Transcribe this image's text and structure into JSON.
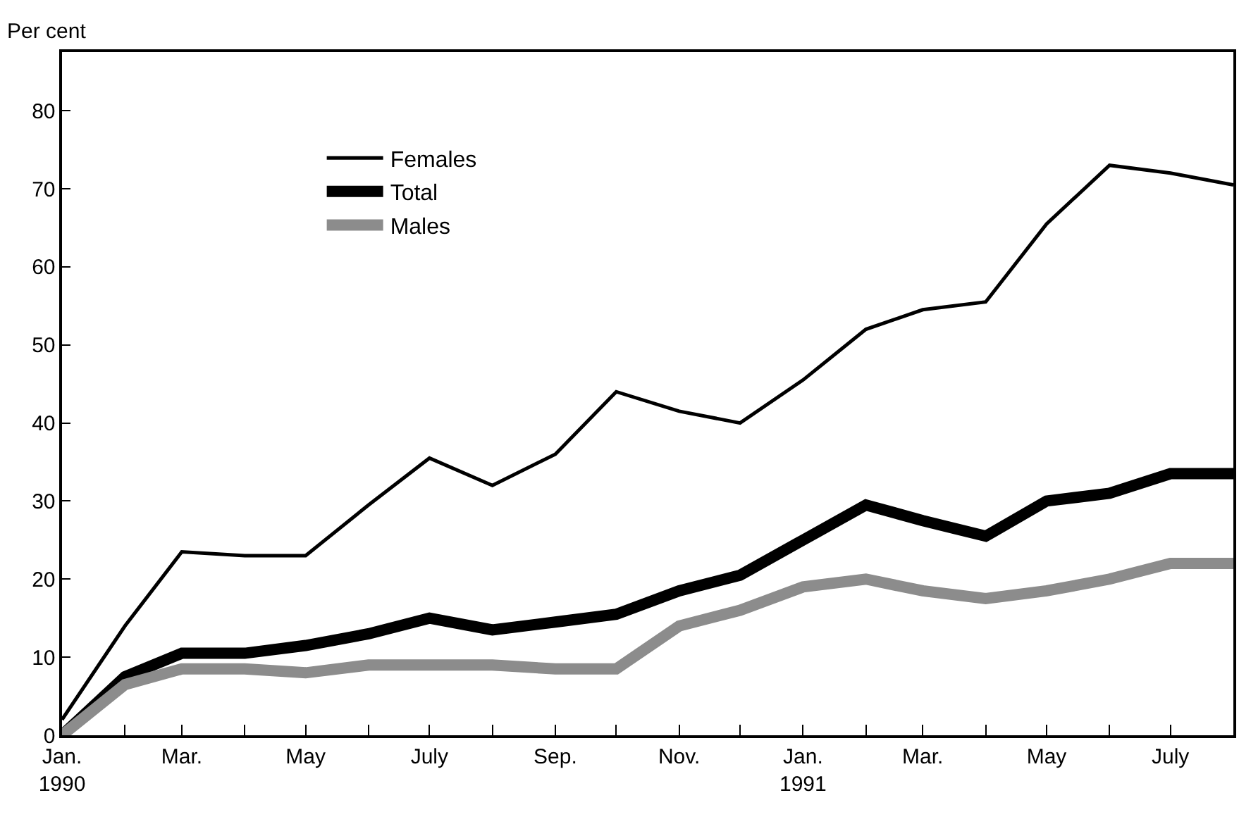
{
  "chart_data": {
    "type": "line",
    "ylabel": "Per cent",
    "x": [
      "1990-01",
      "1990-02",
      "1990-03",
      "1990-04",
      "1990-05",
      "1990-06",
      "1990-07",
      "1990-08",
      "1990-09",
      "1990-10",
      "1990-11",
      "1990-12",
      "1991-01",
      "1991-02",
      "1991-03",
      "1991-04",
      "1991-05",
      "1991-06",
      "1991-07",
      "1991-08"
    ],
    "series": [
      {
        "name": "Females",
        "color": "#000000",
        "values": [
          2,
          14,
          23.5,
          23,
          23,
          29.5,
          35.5,
          32,
          36,
          44,
          41.5,
          40,
          45.5,
          52,
          54.5,
          55.5,
          65.5,
          73,
          72,
          70.5
        ]
      },
      {
        "name": "Total",
        "color": "#000000",
        "values": [
          0,
          7.5,
          10.5,
          10.5,
          11.5,
          13,
          15,
          13.5,
          14.5,
          15.5,
          18.5,
          20.5,
          25,
          29.5,
          27.5,
          25.5,
          30,
          31,
          33.5,
          33.5
        ]
      },
      {
        "name": "Males",
        "color": "#8c8c8c",
        "values": [
          0,
          6.5,
          8.5,
          8.5,
          8,
          9,
          9,
          9,
          8.5,
          8.5,
          14,
          16,
          19,
          20,
          18.5,
          17.5,
          18.5,
          20,
          22,
          22
        ]
      }
    ],
    "xlim": [
      "1990-01",
      "1991-08"
    ],
    "ylim": [
      0,
      87.5
    ],
    "yticks": [
      0,
      10,
      20,
      30,
      40,
      50,
      60,
      70,
      80
    ],
    "xticks": [
      {
        "value": "1990-01",
        "label": "Jan.\n1990"
      },
      {
        "value": "1990-02",
        "label": null
      },
      {
        "value": "1990-03",
        "label": "Mar."
      },
      {
        "value": "1990-04",
        "label": null
      },
      {
        "value": "1990-05",
        "label": "May"
      },
      {
        "value": "1990-06",
        "label": null
      },
      {
        "value": "1990-07",
        "label": "July"
      },
      {
        "value": "1990-08",
        "label": null
      },
      {
        "value": "1990-09",
        "label": "Sep."
      },
      {
        "value": "1990-10",
        "label": null
      },
      {
        "value": "1990-11",
        "label": "Nov."
      },
      {
        "value": "1990-12",
        "label": null
      },
      {
        "value": "1991-01",
        "label": "Jan.\n1991"
      },
      {
        "value": "1991-02",
        "label": null
      },
      {
        "value": "1991-03",
        "label": "Mar."
      },
      {
        "value": "1991-04",
        "label": null
      },
      {
        "value": "1991-05",
        "label": "May"
      },
      {
        "value": "1991-06",
        "label": null
      },
      {
        "value": "1991-07",
        "label": "July"
      },
      {
        "value": "1991-08",
        "label": null
      }
    ],
    "legend": "top left",
    "marker": "none",
    "line_style": "solid"
  }
}
